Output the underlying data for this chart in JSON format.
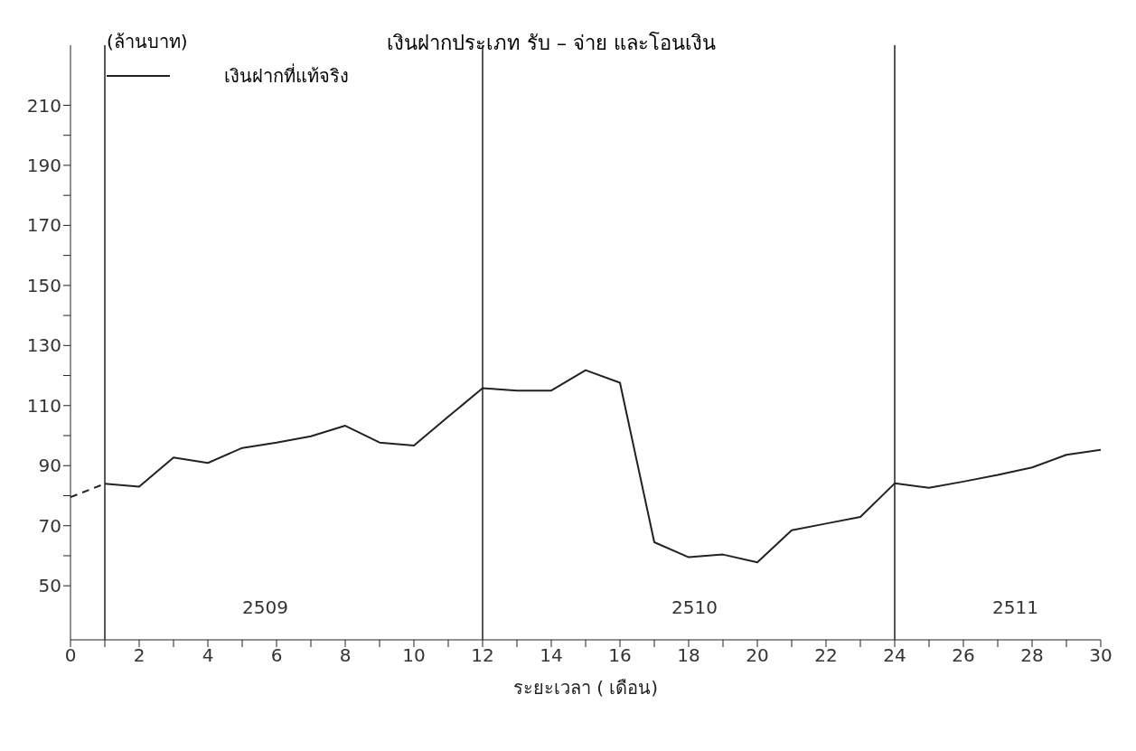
{
  "chart_data": {
    "type": "line",
    "title": "เงินฝากประเภท รับ – จ่าย และโอนเงิน",
    "xlabel": "ระยะเวลา ( เดือน)",
    "ylabel": "(ล้านบาท)",
    "series": [
      {
        "name": "เงินฝากที่แท้จริง",
        "color": "#222222",
        "x": [
          1,
          2,
          3,
          4,
          5,
          6,
          7,
          8,
          9,
          10,
          11,
          12,
          13,
          14,
          15,
          16,
          17,
          18,
          19,
          20,
          21,
          22,
          23,
          24,
          25,
          26,
          27,
          28,
          29,
          30
        ],
        "values": [
          84,
          83,
          92.7,
          90.9,
          95.9,
          97.7,
          99.8,
          103.3,
          97.7,
          96.7,
          106.3,
          115.8,
          115,
          115,
          121.8,
          117.6,
          64.5,
          59.5,
          60.4,
          57.8,
          68.5,
          70.7,
          72.9,
          84.1,
          82.6,
          84.7,
          86.9,
          89.4,
          93.6,
          95.3
        ]
      },
      {
        "color": "#222222",
        "line_style": "dashed",
        "x": [
          0,
          1
        ],
        "values": [
          79.5,
          84
        ]
      }
    ],
    "xlim": [
      0,
      30
    ],
    "ylim": [
      32,
      230
    ],
    "xticks": [
      0,
      {
        "value": 1,
        "label": null
      },
      2,
      {
        "value": 3,
        "label": null
      },
      4,
      {
        "value": 5,
        "label": null
      },
      6,
      {
        "value": 7,
        "label": null
      },
      8,
      {
        "value": 9,
        "label": null
      },
      10,
      {
        "value": 11,
        "label": null
      },
      12,
      {
        "value": 13,
        "label": null
      },
      14,
      {
        "value": 15,
        "label": null
      },
      16,
      {
        "value": 17,
        "label": null
      },
      18,
      {
        "value": 19,
        "label": null
      },
      20,
      {
        "value": 21,
        "label": null
      },
      22,
      {
        "value": 23,
        "label": null
      },
      24,
      {
        "value": 25,
        "label": null
      },
      26,
      {
        "value": 27,
        "label": null
      },
      28,
      {
        "value": 29,
        "label": null
      },
      30
    ],
    "yticks": [
      50,
      {
        "value": 60,
        "label": null
      },
      70,
      {
        "value": 80,
        "label": null
      },
      90,
      {
        "value": 100,
        "label": null
      },
      110,
      {
        "value": 120,
        "label": null
      },
      130,
      {
        "value": 140,
        "label": null
      },
      150,
      {
        "value": 160,
        "label": null
      },
      170,
      {
        "value": 180,
        "label": null
      },
      190,
      {
        "value": 200,
        "label": null
      },
      210
    ],
    "ref_lines": [
      {
        "axis": "x",
        "value": 1
      },
      {
        "axis": "x",
        "value": 12
      },
      {
        "axis": "x",
        "value": 24
      }
    ],
    "annotations": [
      "2509",
      "2510",
      "2511"
    ],
    "legend": "top left",
    "marker": "none",
    "line_style": "solid"
  }
}
